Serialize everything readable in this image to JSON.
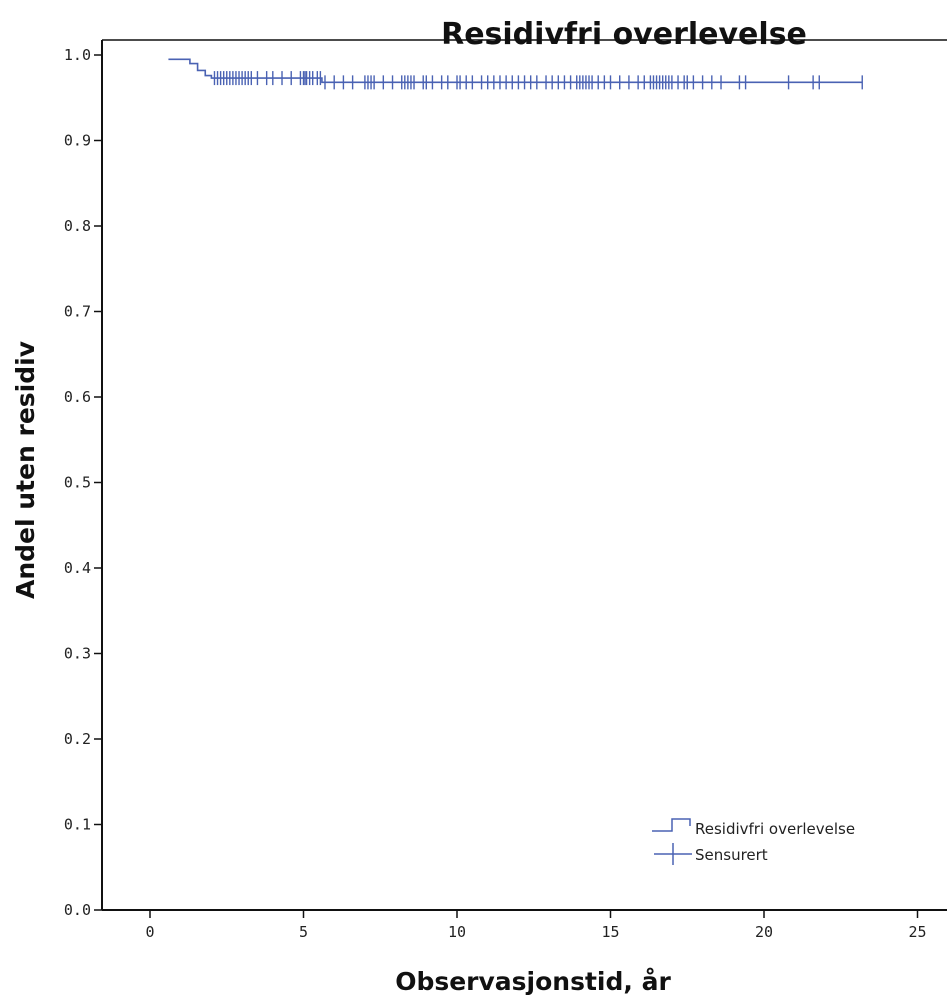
{
  "chart_data": {
    "type": "line",
    "title": "Residivfri overlevelse",
    "xlabel": "Observasjonstid, år",
    "ylabel": "Andel uten residiv",
    "xlim": [
      0,
      25
    ],
    "ylim": [
      0.0,
      1.0
    ],
    "x_ticks": [
      0,
      5,
      10,
      15,
      20,
      25
    ],
    "x_tick_labels": [
      "0",
      "5",
      "10",
      "15",
      "20",
      "25"
    ],
    "y_ticks": [
      0.0,
      0.1,
      0.2,
      0.3,
      0.4,
      0.5,
      0.6,
      0.7,
      0.8,
      0.9,
      1.0
    ],
    "y_tick_labels": [
      "0.0",
      "0.1",
      "0.2",
      "0.3",
      "0.4",
      "0.5",
      "0.6",
      "0.7",
      "0.8",
      "0.9",
      "1.0"
    ],
    "grid": false,
    "legend_position": "bottom-right",
    "line_color": "#4a62b3",
    "series": [
      {
        "name": "Residivfri overlevelse",
        "kind": "survival-step",
        "x": [
          0,
          1.3,
          1.55,
          1.8,
          2.0,
          5.6,
          23.2
        ],
        "y": [
          0.995,
          0.99,
          0.982,
          0.976,
          0.973,
          0.968,
          0.968
        ]
      },
      {
        "name": "Sensurert",
        "kind": "censor-marks",
        "x": [
          2.1,
          2.2,
          2.3,
          2.4,
          2.5,
          2.6,
          2.7,
          2.8,
          2.9,
          3.0,
          3.1,
          3.2,
          3.3,
          3.5,
          3.8,
          4.0,
          4.3,
          4.6,
          4.9,
          5.0,
          5.05,
          5.1,
          5.2,
          5.3,
          5.45,
          5.55,
          5.7,
          6.0,
          6.3,
          6.6,
          7.0,
          7.1,
          7.2,
          7.3,
          7.6,
          7.9,
          8.2,
          8.3,
          8.4,
          8.5,
          8.6,
          8.9,
          9.0,
          9.2,
          9.5,
          9.7,
          10.0,
          10.1,
          10.3,
          10.5,
          10.8,
          11.0,
          11.2,
          11.4,
          11.6,
          11.8,
          12.0,
          12.2,
          12.4,
          12.6,
          12.9,
          13.1,
          13.3,
          13.5,
          13.7,
          13.9,
          14.0,
          14.1,
          14.2,
          14.3,
          14.4,
          14.6,
          14.8,
          15.0,
          15.3,
          15.6,
          15.9,
          16.1,
          16.3,
          16.4,
          16.5,
          16.6,
          16.7,
          16.8,
          16.9,
          17.0,
          17.2,
          17.4,
          17.5,
          17.7,
          18.0,
          18.3,
          18.6,
          19.2,
          19.4,
          20.8,
          21.6,
          21.8,
          23.2
        ],
        "y_upper": 0.973,
        "y_upper_until": 5.6,
        "y_lower": 0.968
      }
    ]
  }
}
